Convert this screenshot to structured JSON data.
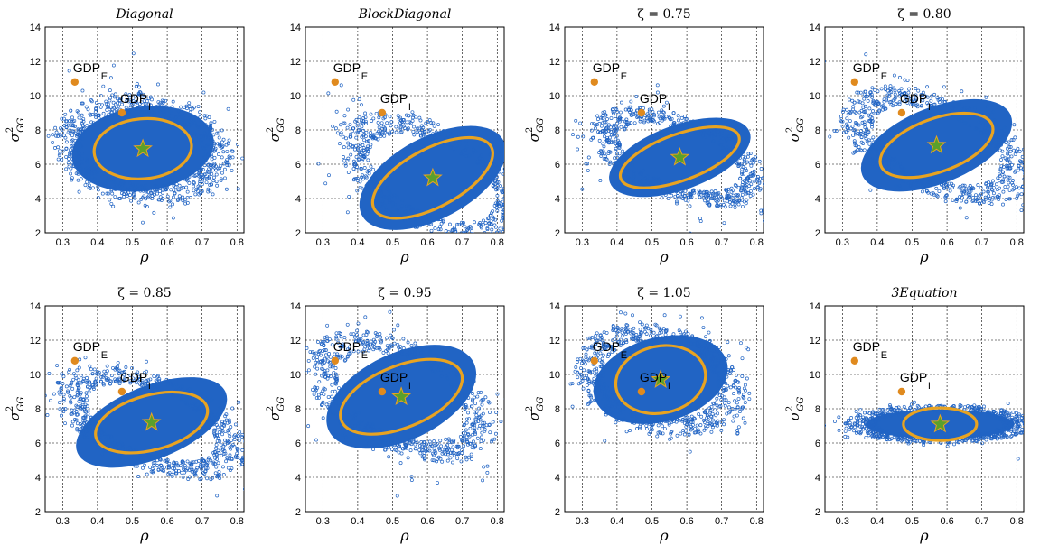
{
  "figure": {
    "xlabel": "ρ",
    "ylabel": {
      "base": "σ",
      "sup": "2",
      "sub": "GG"
    },
    "xlim": [
      0.25,
      0.82
    ],
    "ylim": [
      2,
      14
    ],
    "xticks": [
      "0.3",
      "0.4",
      "0.5",
      "0.6",
      "0.7",
      "0.8"
    ],
    "yticks": [
      "2",
      "4",
      "6",
      "8",
      "10",
      "12",
      "14"
    ],
    "grid": true
  },
  "colors": {
    "cloud": "#2164c4",
    "ellipse": "#e8a321",
    "marker": "#e08a1e",
    "star": "#5aa02c",
    "star_edge": "#e8a321"
  },
  "chart_data": [
    {
      "type": "scatter",
      "title": "Diagonal",
      "title_italic": true,
      "mean": [
        0.53,
        6.9
      ],
      "ellipse": {
        "rx": 0.14,
        "ry": 1.75,
        "angle_deg": -5
      },
      "cloud": {
        "rx": 0.25,
        "ry": 3.0,
        "angle_deg": -8
      },
      "markers": [
        {
          "label": "GDP",
          "sub": "E",
          "x": 0.335,
          "y": 10.8
        },
        {
          "label": "GDP",
          "sub": "I",
          "x": 0.47,
          "y": 9.0
        }
      ]
    },
    {
      "type": "scatter",
      "title": "BlockDiagonal",
      "title_italic": true,
      "mean": [
        0.615,
        5.2
      ],
      "ellipse": {
        "rx": 0.19,
        "ry": 1.7,
        "angle_deg": -28
      },
      "cloud": {
        "rx": 0.28,
        "ry": 2.9,
        "angle_deg": -28
      },
      "markers": [
        {
          "label": "GDP",
          "sub": "E",
          "x": 0.335,
          "y": 10.8
        },
        {
          "label": "GDP",
          "sub": "I",
          "x": 0.47,
          "y": 9.0
        }
      ]
    },
    {
      "type": "scatter",
      "title": "ζ = 0.75",
      "title_italic": false,
      "mean": [
        0.58,
        6.4
      ],
      "ellipse": {
        "rx": 0.18,
        "ry": 1.35,
        "angle_deg": -20
      },
      "cloud": {
        "rx": 0.26,
        "ry": 2.3,
        "angle_deg": -20
      },
      "markers": [
        {
          "label": "GDP",
          "sub": "E",
          "x": 0.335,
          "y": 10.8
        },
        {
          "label": "GDP",
          "sub": "I",
          "x": 0.47,
          "y": 9.0
        }
      ]
    },
    {
      "type": "scatter",
      "title": "ζ = 0.80",
      "title_italic": false,
      "mean": [
        0.57,
        7.1
      ],
      "ellipse": {
        "rx": 0.17,
        "ry": 1.55,
        "angle_deg": -20
      },
      "cloud": {
        "rx": 0.28,
        "ry": 2.7,
        "angle_deg": -22
      },
      "markers": [
        {
          "label": "GDP",
          "sub": "E",
          "x": 0.335,
          "y": 10.8
        },
        {
          "label": "GDP",
          "sub": "I",
          "x": 0.47,
          "y": 9.0
        }
      ]
    },
    {
      "type": "scatter",
      "title": "ζ = 0.85",
      "title_italic": false,
      "mean": [
        0.555,
        7.2
      ],
      "ellipse": {
        "rx": 0.165,
        "ry": 1.6,
        "angle_deg": -15
      },
      "cloud": {
        "rx": 0.28,
        "ry": 2.6,
        "angle_deg": -22
      },
      "markers": [
        {
          "label": "GDP",
          "sub": "E",
          "x": 0.335,
          "y": 10.8
        },
        {
          "label": "GDP",
          "sub": "I",
          "x": 0.47,
          "y": 9.0
        }
      ]
    },
    {
      "type": "scatter",
      "title": "ζ = 0.95",
      "title_italic": false,
      "mean": [
        0.525,
        8.7
      ],
      "ellipse": {
        "rx": 0.185,
        "ry": 1.8,
        "angle_deg": -22
      },
      "cloud": {
        "rx": 0.28,
        "ry": 3.1,
        "angle_deg": -25
      },
      "markers": [
        {
          "label": "GDP",
          "sub": "E",
          "x": 0.335,
          "y": 10.8
        },
        {
          "label": "GDP",
          "sub": "I",
          "x": 0.47,
          "y": 9.0
        }
      ]
    },
    {
      "type": "scatter",
      "title": "ζ = 1.05",
      "title_italic": false,
      "mean": [
        0.525,
        9.7
      ],
      "ellipse": {
        "rx": 0.13,
        "ry": 1.95,
        "angle_deg": -12
      },
      "cloud": {
        "rx": 0.24,
        "ry": 3.0,
        "angle_deg": -15
      },
      "markers": [
        {
          "label": "GDP",
          "sub": "E",
          "x": 0.335,
          "y": 10.8
        },
        {
          "label": "GDP",
          "sub": "I",
          "x": 0.47,
          "y": 9.0
        }
      ]
    },
    {
      "type": "scatter",
      "title": "3Equation",
      "title_italic": true,
      "mean": [
        0.58,
        7.1
      ],
      "ellipse": {
        "rx": 0.105,
        "ry": 0.95,
        "angle_deg": 0
      },
      "cloud": {
        "rx": 0.26,
        "ry": 1.05,
        "angle_deg": 0
      },
      "markers": [
        {
          "label": "GDP",
          "sub": "E",
          "x": 0.335,
          "y": 10.8
        },
        {
          "label": "GDP",
          "sub": "I",
          "x": 0.47,
          "y": 9.0
        }
      ]
    }
  ]
}
